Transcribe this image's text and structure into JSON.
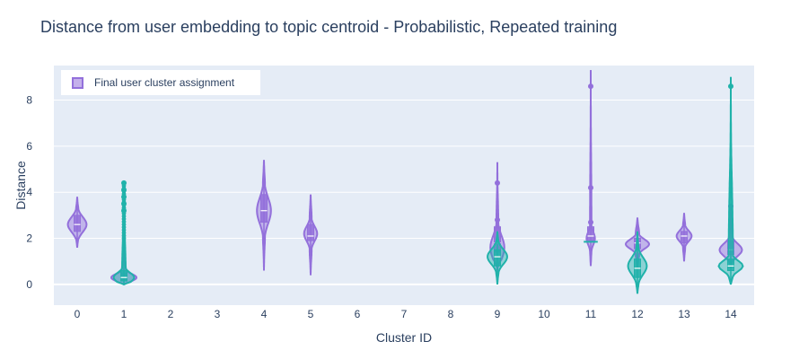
{
  "chart_data": {
    "type": "violin",
    "title": "Distance from user embedding to topic centroid - Probabilistic, Repeated training",
    "xlabel": "Cluster ID",
    "ylabel": "Distance",
    "categories": [
      "0",
      "1",
      "2",
      "3",
      "4",
      "5",
      "6",
      "7",
      "8",
      "9",
      "10",
      "11",
      "12",
      "13",
      "14"
    ],
    "yticks": [
      0,
      2,
      4,
      6,
      8
    ],
    "ylim": [
      -0.9,
      9.5
    ],
    "grid": true,
    "legend_position": "top-left",
    "colors": {
      "purple": "#9370db",
      "teal": "#20b2aa",
      "plot_bg": "#e5ecf6",
      "text": "#2a3f5f"
    },
    "series": [
      {
        "name": "Final user cluster assignment",
        "color": "#9370db",
        "violins": [
          {
            "x": "0",
            "min": 1.6,
            "q1": 2.3,
            "median": 2.6,
            "q3": 3.0,
            "max": 3.8,
            "mode": 2.6,
            "half_width": 0.2,
            "outliers": []
          },
          {
            "x": "1",
            "min": 0.0,
            "q1": 0.15,
            "median": 0.3,
            "q3": 0.5,
            "max": 2.0,
            "mode": 0.3,
            "half_width": 0.27,
            "outliers": []
          },
          {
            "x": "4",
            "min": 0.6,
            "q1": 2.7,
            "median": 3.2,
            "q3": 3.9,
            "max": 5.4,
            "mode": 3.2,
            "half_width": 0.15,
            "outliers": []
          },
          {
            "x": "5",
            "min": 0.4,
            "q1": 1.9,
            "median": 2.1,
            "q3": 2.6,
            "max": 3.9,
            "mode": 2.2,
            "half_width": 0.14,
            "outliers": []
          },
          {
            "x": "9",
            "min": 0.6,
            "q1": 1.4,
            "median": 1.8,
            "q3": 2.5,
            "max": 5.3,
            "mode": 1.6,
            "half_width": 0.15,
            "outliers": [
              4.4,
              2.8
            ]
          },
          {
            "x": "11",
            "min": 0.8,
            "q1": 1.9,
            "median": 2.1,
            "q3": 2.5,
            "max": 9.3,
            "mode": 2.0,
            "half_width": 0.09,
            "outliers": [
              8.6,
              4.2,
              2.7
            ]
          },
          {
            "x": "12",
            "min": 0.7,
            "q1": 1.55,
            "median": 1.8,
            "q3": 2.0,
            "max": 2.9,
            "mode": 1.75,
            "half_width": 0.25,
            "outliers": []
          },
          {
            "x": "13",
            "min": 1.0,
            "q1": 1.8,
            "median": 2.1,
            "q3": 2.3,
            "max": 3.1,
            "mode": 2.1,
            "half_width": 0.16,
            "outliers": []
          },
          {
            "x": "14",
            "min": 0.7,
            "q1": 1.3,
            "median": 1.5,
            "q3": 1.9,
            "max": 3.5,
            "mode": 1.5,
            "half_width": 0.24,
            "outliers": [
              3.4,
              2.8
            ]
          }
        ]
      },
      {
        "name": "",
        "color": "#20b2aa",
        "violins": [
          {
            "x": "1",
            "min": 0.0,
            "q1": 0.15,
            "median": 0.3,
            "q3": 0.6,
            "max": 4.4,
            "mode": 0.3,
            "half_width": 0.22,
            "outliers": [
              4.4,
              4.1,
              3.8,
              3.5,
              3.2
            ]
          },
          {
            "x": "9",
            "min": 0.0,
            "q1": 0.8,
            "median": 1.2,
            "q3": 1.5,
            "max": 2.3,
            "mode": 1.2,
            "half_width": 0.21,
            "outliers": []
          },
          {
            "x": "11",
            "min": 1.85,
            "q1": 1.85,
            "median": 1.85,
            "q3": 1.85,
            "max": 1.85,
            "mode": 1.85,
            "half_width": 0.25,
            "outliers": []
          },
          {
            "x": "12",
            "min": -0.4,
            "q1": 0.3,
            "median": 0.7,
            "q3": 1.1,
            "max": 2.3,
            "mode": 0.8,
            "half_width": 0.2,
            "outliers": []
          },
          {
            "x": "14",
            "min": 0.0,
            "q1": 0.6,
            "median": 0.8,
            "q3": 1.1,
            "max": 9.0,
            "mode": 0.8,
            "half_width": 0.26,
            "outliers": [
              8.6
            ]
          }
        ]
      }
    ]
  }
}
